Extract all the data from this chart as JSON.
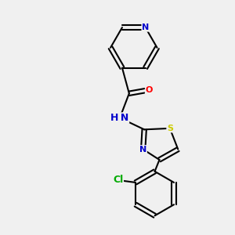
{
  "background_color": "#f0f0f0",
  "bond_color": "#000000",
  "bond_width": 1.5,
  "atom_colors": {
    "N": "#0000cc",
    "O": "#ff0000",
    "S": "#cccc00",
    "Cl": "#00aa00",
    "C": "#000000",
    "H": "#555555"
  },
  "font_size": 8,
  "figsize": [
    3.0,
    3.0
  ],
  "dpi": 100
}
